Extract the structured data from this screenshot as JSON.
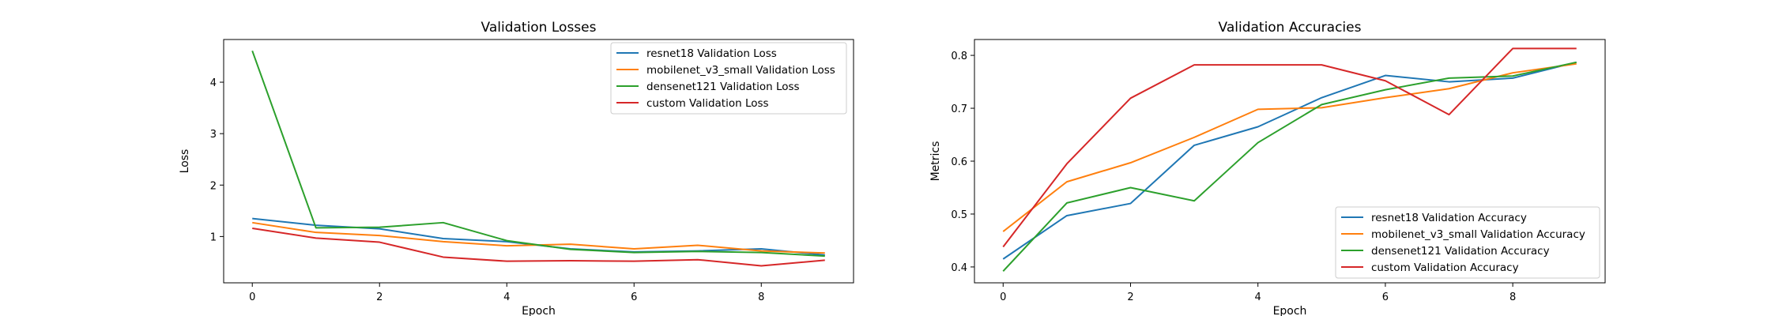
{
  "chart_data": [
    {
      "type": "line",
      "title": "Validation Losses",
      "xlabel": "Epoch",
      "ylabel": "Loss",
      "x": [
        0,
        1,
        2,
        3,
        4,
        5,
        6,
        7,
        8,
        9
      ],
      "xlim": [
        -0.45,
        9.45
      ],
      "ylim": [
        0.1,
        4.83
      ],
      "xticks": [
        0,
        2,
        4,
        6,
        8
      ],
      "yticks": [
        1,
        2,
        3,
        4
      ],
      "legend_loc": "upper right",
      "series": [
        {
          "name": "resnet18 Validation Loss",
          "color": "#1f77b4",
          "values": [
            1.35,
            1.22,
            1.15,
            0.96,
            0.9,
            0.76,
            0.7,
            0.72,
            0.76,
            0.64
          ]
        },
        {
          "name": "mobilenet_v3_small Validation Loss",
          "color": "#ff7f0e",
          "values": [
            1.27,
            1.08,
            1.02,
            0.9,
            0.82,
            0.85,
            0.76,
            0.83,
            0.72,
            0.68
          ]
        },
        {
          "name": "densenet121 Validation Loss",
          "color": "#2ca02c",
          "values": [
            4.61,
            1.17,
            1.18,
            1.27,
            0.92,
            0.75,
            0.69,
            0.71,
            0.69,
            0.62
          ]
        },
        {
          "name": "custom Validation Loss",
          "color": "#d62728",
          "values": [
            1.16,
            0.97,
            0.89,
            0.6,
            0.52,
            0.53,
            0.52,
            0.55,
            0.43,
            0.54
          ]
        }
      ]
    },
    {
      "type": "line",
      "title": "Validation Accuracies",
      "xlabel": "Epoch",
      "ylabel": "Metrics",
      "x": [
        0,
        1,
        2,
        3,
        4,
        5,
        6,
        7,
        8,
        9
      ],
      "xlim": [
        -0.45,
        9.45
      ],
      "ylim": [
        0.37,
        0.83
      ],
      "xticks": [
        0,
        2,
        4,
        6,
        8
      ],
      "yticks": [
        0.4,
        0.5,
        0.6,
        0.7,
        0.8
      ],
      "legend_loc": "lower right",
      "series": [
        {
          "name": "resnet18 Validation Accuracy",
          "color": "#1f77b4",
          "values": [
            0.415,
            0.497,
            0.52,
            0.63,
            0.665,
            0.72,
            0.762,
            0.75,
            0.757,
            0.787
          ]
        },
        {
          "name": "mobilenet_v3_small Validation Accuracy",
          "color": "#ff7f0e",
          "values": [
            0.467,
            0.561,
            0.597,
            0.645,
            0.698,
            0.701,
            0.72,
            0.737,
            0.767,
            0.784
          ]
        },
        {
          "name": "densenet121 Validation Accuracy",
          "color": "#2ca02c",
          "values": [
            0.392,
            0.521,
            0.55,
            0.525,
            0.635,
            0.707,
            0.735,
            0.757,
            0.761,
            0.787
          ]
        },
        {
          "name": "custom Validation Accuracy",
          "color": "#d62728",
          "values": [
            0.438,
            0.595,
            0.719,
            0.782,
            0.782,
            0.782,
            0.752,
            0.688,
            0.813,
            0.813
          ]
        }
      ]
    }
  ]
}
